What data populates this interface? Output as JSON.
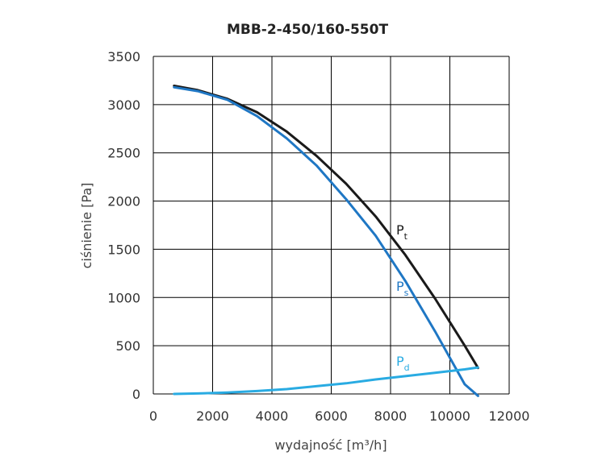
{
  "chart_data": {
    "type": "line",
    "title": "MBB-2-450/160-550T",
    "xlabel": "wydajność [m³/h]",
    "ylabel": "ciśnienie [Pa]",
    "xlim": [
      0,
      12000
    ],
    "ylim": [
      0,
      3500
    ],
    "xticks": [
      0,
      2000,
      4000,
      6000,
      8000,
      10000,
      12000
    ],
    "yticks": [
      0,
      500,
      1000,
      1500,
      2000,
      2500,
      3000,
      3500
    ],
    "grid": true,
    "series": [
      {
        "name": "Pt",
        "base": "P",
        "sub": "t",
        "color": "#1a1a1a",
        "x": [
          700,
          1500,
          2500,
          3500,
          4500,
          5500,
          6500,
          7500,
          8500,
          9500,
          10500,
          10950
        ],
        "y": [
          3195,
          3150,
          3060,
          2920,
          2720,
          2470,
          2180,
          1840,
          1440,
          990,
          500,
          270
        ]
      },
      {
        "name": "Ps",
        "base": "P",
        "sub": "s",
        "color": "#1f77c4",
        "x": [
          700,
          1500,
          2500,
          3500,
          4500,
          5500,
          6500,
          7500,
          8500,
          9500,
          10500,
          10950
        ],
        "y": [
          3180,
          3140,
          3050,
          2880,
          2650,
          2370,
          2020,
          1640,
          1170,
          650,
          100,
          -20
        ]
      },
      {
        "name": "Pd",
        "base": "P",
        "sub": "d",
        "color": "#29abe2",
        "x": [
          700,
          1500,
          2500,
          3500,
          4500,
          5500,
          6500,
          7500,
          8500,
          9500,
          10500,
          10950
        ],
        "y": [
          0,
          5,
          15,
          30,
          50,
          80,
          110,
          150,
          185,
          220,
          255,
          275
        ]
      }
    ]
  }
}
